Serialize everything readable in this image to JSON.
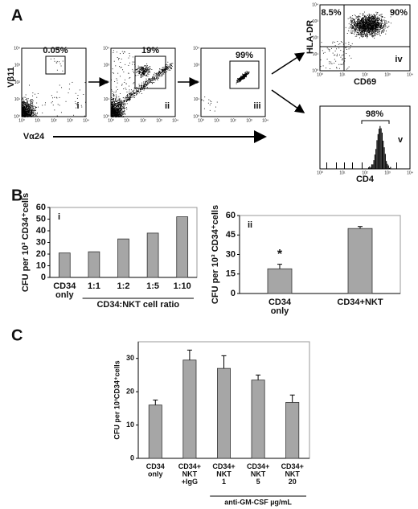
{
  "panel_a": {
    "label": "A",
    "plots": [
      {
        "roman": "i",
        "gate": "0.05%"
      },
      {
        "roman": "ii",
        "gate": "19%"
      },
      {
        "roman": "iii",
        "gate": "99%"
      },
      {
        "roman": "iv",
        "upper_left": "8.5%",
        "upper_right": "90%",
        "y_label": "HLA-DR",
        "x_label": "CD69"
      },
      {
        "roman": "v",
        "gate": "98%",
        "x_label": "CD4"
      }
    ],
    "y_label": "Vβ11",
    "x_label": "Vα24",
    "log_ticks": [
      "10⁰",
      "10¹",
      "10²",
      "10³",
      "10⁴"
    ]
  },
  "panel_b_label": "B",
  "panel_c_label": "C",
  "chart_data": [
    {
      "type": "bar",
      "panel": "i",
      "y_label": "CFU per 10³ CD34⁺cells",
      "categories": [
        "CD34\nonly",
        "1:1",
        "1:2",
        "1:5",
        "1:10"
      ],
      "values": [
        21,
        22,
        33,
        38,
        52
      ],
      "color": "#a6a6a6",
      "ylim": [
        0,
        60
      ],
      "yticks": [
        0,
        10,
        20,
        30,
        40,
        50,
        60
      ],
      "group_label": "CD34:NKT cell ratio"
    },
    {
      "type": "bar",
      "panel": "ii",
      "y_label": "CFU per 10³ CD34⁺cells",
      "categories": [
        "CD34\nonly",
        "CD34+NKT"
      ],
      "values": [
        19,
        50
      ],
      "errors": [
        3.5,
        1.5
      ],
      "color": "#a6a6a6",
      "ylim": [
        0,
        60
      ],
      "yticks": [
        0,
        15,
        30,
        45,
        60
      ],
      "annotation": "*"
    },
    {
      "type": "bar",
      "y_label": "CFU per 10³CD34⁺cells",
      "categories": [
        "CD34\nonly",
        "CD34+\nNKT\n+IgG",
        "CD34+\nNKT\n1",
        "CD34+\nNKT\n5",
        "CD34+\nNKT\n20"
      ],
      "values": [
        16,
        29.5,
        27,
        23.5,
        16.8
      ],
      "errors": [
        1.5,
        3,
        3.8,
        1.5,
        2.2
      ],
      "color": "#a6a6a6",
      "ylim": [
        0,
        35
      ],
      "yticks": [
        0,
        10,
        20,
        30
      ],
      "group_label": "anti-GM-CSF µg/mL"
    }
  ]
}
